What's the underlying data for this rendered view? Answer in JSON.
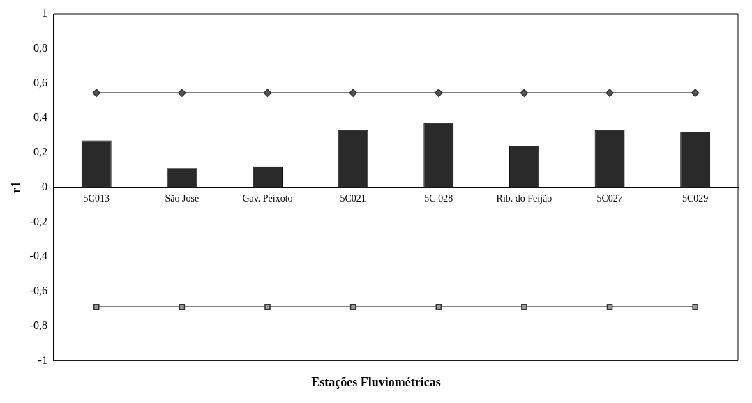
{
  "chart_data": {
    "type": "bar",
    "ylabel": "r1",
    "xlabel": "Estações Fluviométricas",
    "categories": [
      "5C013",
      "São José",
      "Gav. Peixoto",
      "5C021",
      "5C 028",
      "Rib. do Feijão",
      "5C027",
      "5C029"
    ],
    "series": [
      {
        "color": "#2a2a2a",
        "values": [
          0.27,
          0.11,
          0.12,
          0.33,
          0.37,
          0.24,
          0.33,
          0.32
        ]
      },
      {
        "type": "line",
        "color": "#555555",
        "marker": "diamond",
        "values": [
          0.545,
          0.545,
          0.545,
          0.545,
          0.545,
          0.545,
          0.545,
          0.545
        ]
      },
      {
        "type": "line",
        "color": "#999999",
        "marker": "square",
        "values": [
          -0.69,
          -0.69,
          -0.69,
          -0.69,
          -0.69,
          -0.69,
          -0.69,
          -0.69
        ]
      }
    ],
    "ylim": [
      -1,
      1
    ],
    "yticks": [
      -1,
      {
        "value": -0.8,
        "label": "-0,8"
      },
      {
        "value": -0.6,
        "label": "-0,6"
      },
      {
        "value": -0.4,
        "label": "-0,4"
      },
      {
        "value": -0.2,
        "label": "-0,2"
      },
      0,
      {
        "value": 0.2,
        "label": "0,2"
      },
      {
        "value": 0.4,
        "label": "0,4"
      },
      {
        "value": 0.6,
        "label": "0,6"
      },
      {
        "value": 0.8,
        "label": "0,8"
      },
      1
    ],
    "grid": false,
    "legend": false
  }
}
